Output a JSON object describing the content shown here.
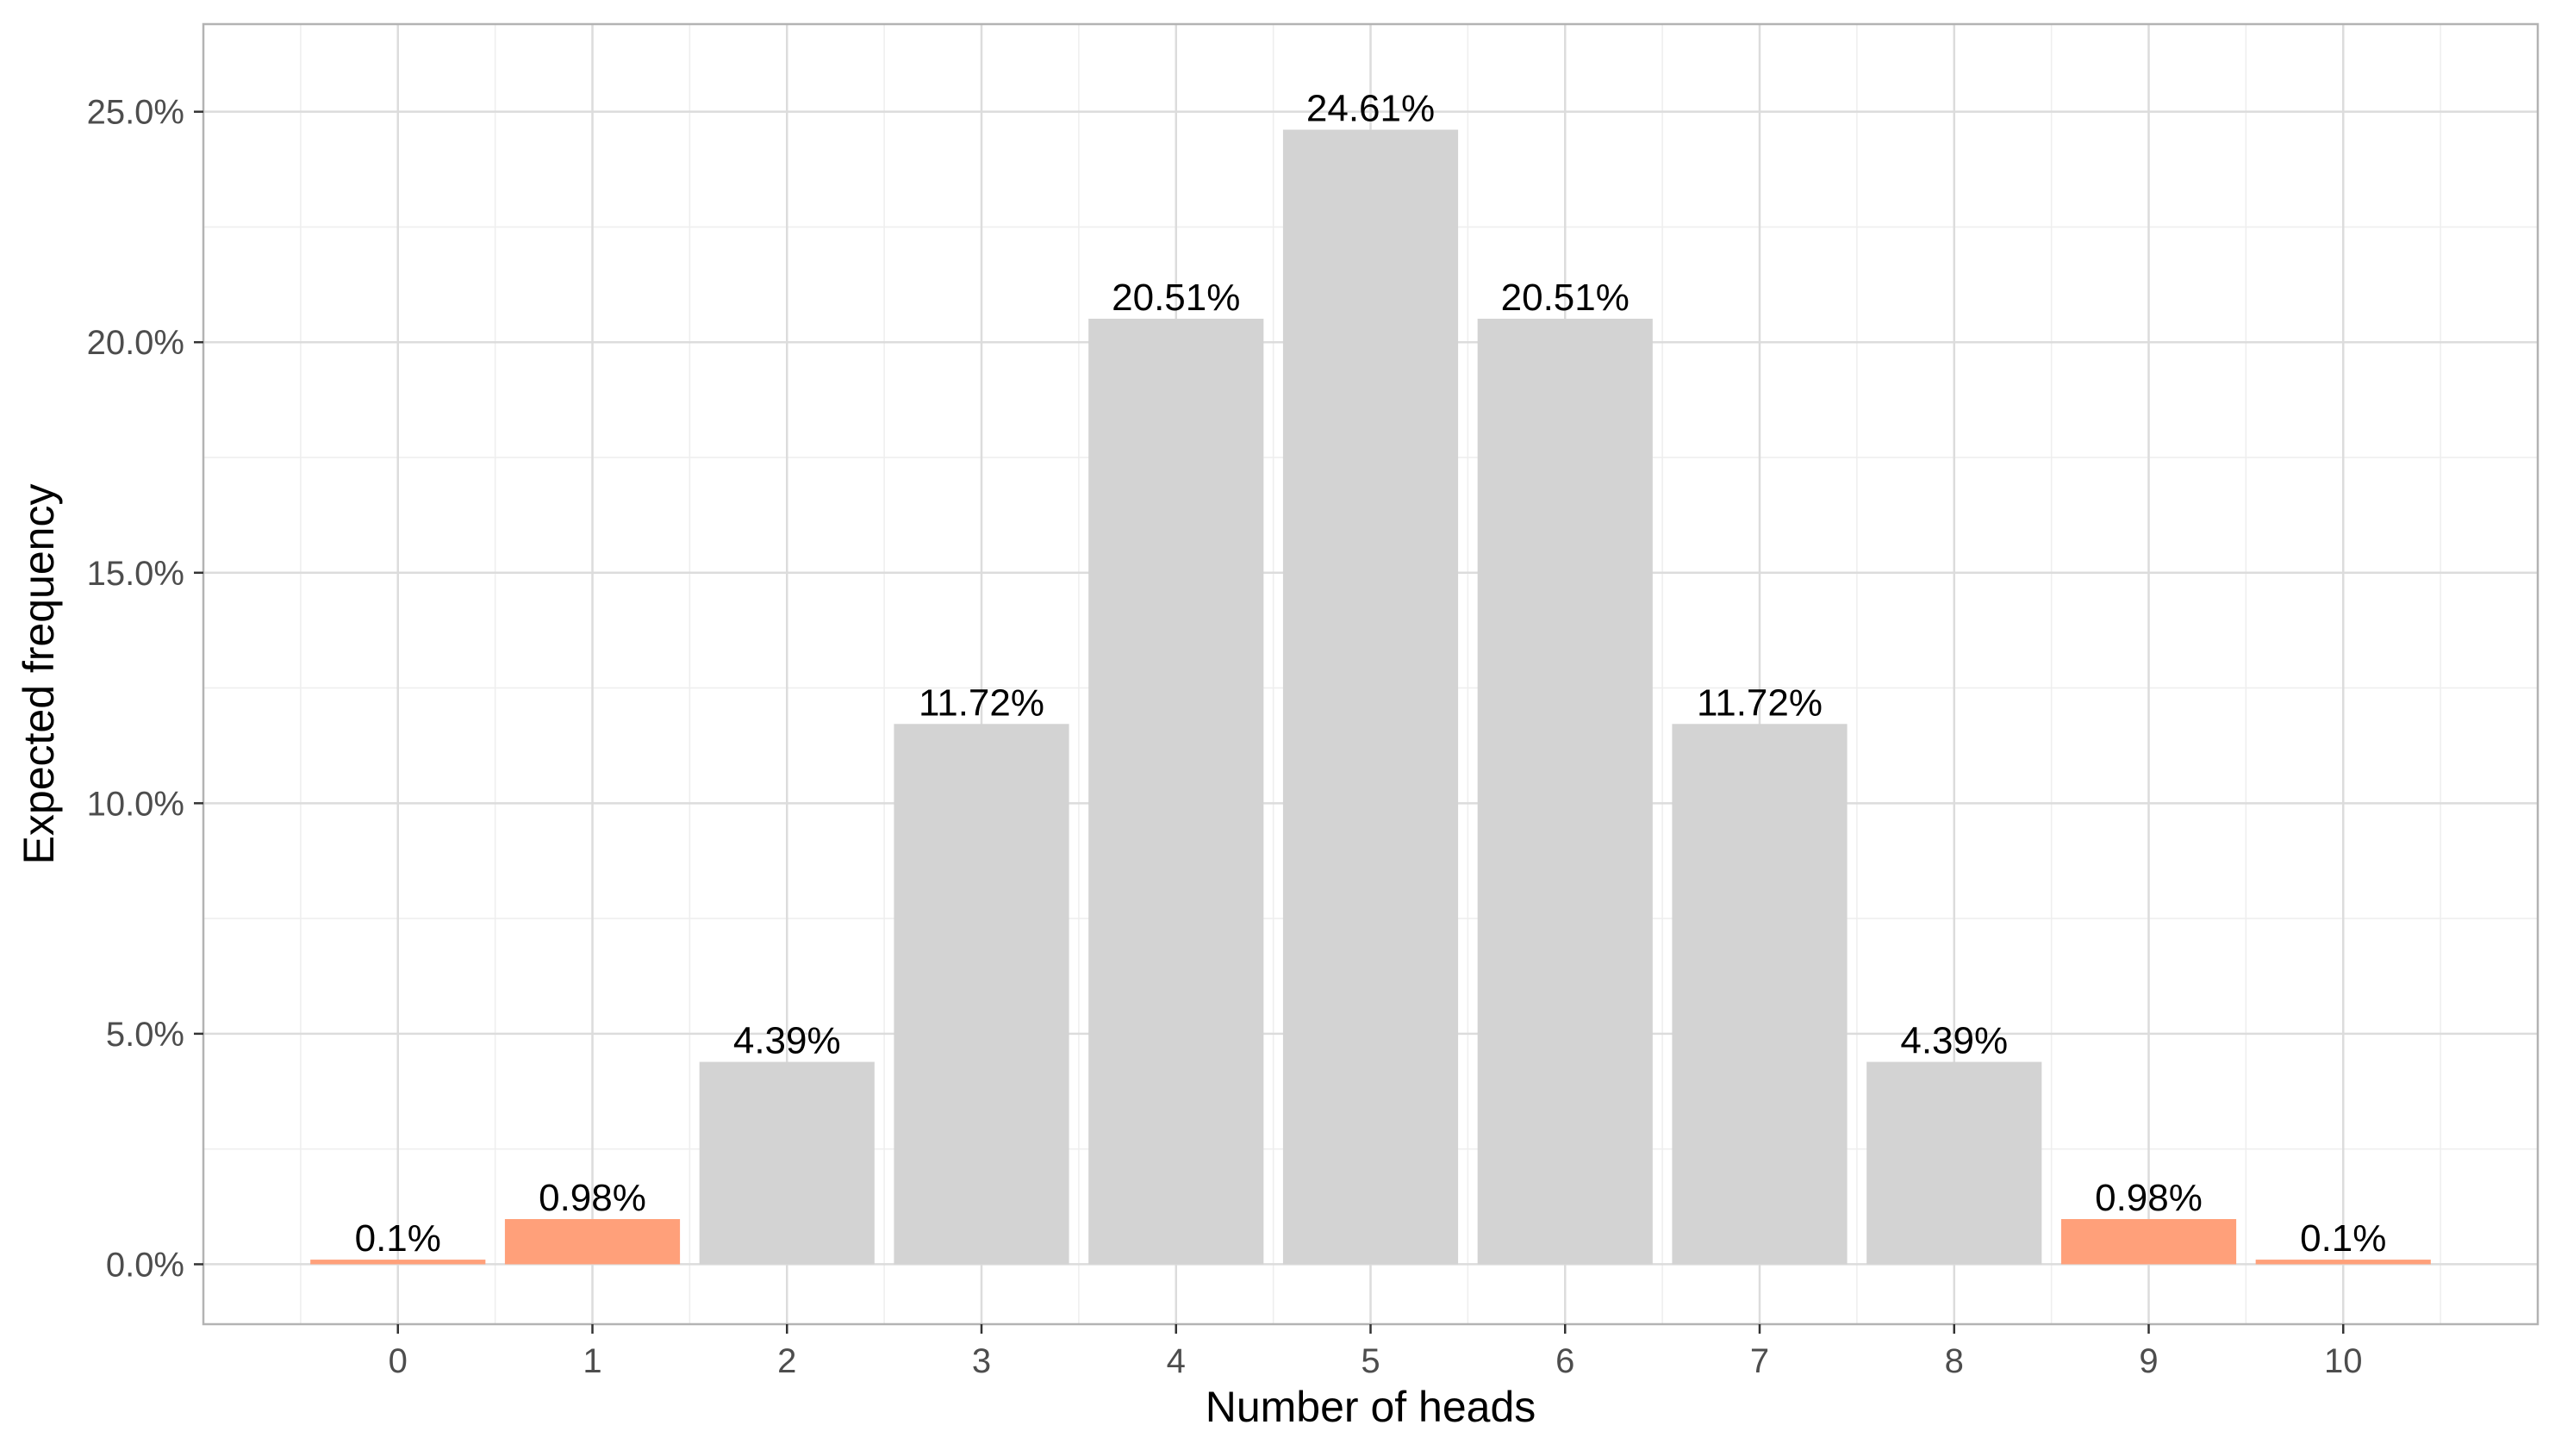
{
  "colors": {
    "bar_default": "#d3d3d3",
    "bar_highlight": "#ffa07a",
    "grid_major": "#dcdcdc",
    "grid_minor": "#eeeeee",
    "panel_border": "#b3b3b3",
    "tick_text": "#4d4d4d"
  },
  "chart_data": {
    "type": "bar",
    "title": "",
    "xlabel": "Number of heads",
    "ylabel": "Expected frequency",
    "categories": [
      "0",
      "1",
      "2",
      "3",
      "4",
      "5",
      "6",
      "7",
      "8",
      "9",
      "10"
    ],
    "values": [
      0.1,
      0.98,
      4.39,
      11.72,
      20.51,
      24.61,
      20.51,
      11.72,
      4.39,
      0.98,
      0.1
    ],
    "data_labels": [
      "0.1%",
      "0.98%",
      "4.39%",
      "11.72%",
      "20.51%",
      "24.61%",
      "20.51%",
      "11.72%",
      "4.39%",
      "0.98%",
      "0.1%"
    ],
    "highlighted": [
      true,
      true,
      false,
      false,
      false,
      false,
      false,
      false,
      false,
      true,
      true
    ],
    "y_ticks": [
      0,
      5,
      10,
      15,
      20,
      25
    ],
    "y_tick_labels": [
      "0.0%",
      "5.0%",
      "10.0%",
      "15.0%",
      "20.0%",
      "25.0%"
    ],
    "ylim": [
      -1.3,
      26.9
    ],
    "xlim": [
      -1,
      11
    ],
    "grid": true,
    "legend": "none"
  }
}
